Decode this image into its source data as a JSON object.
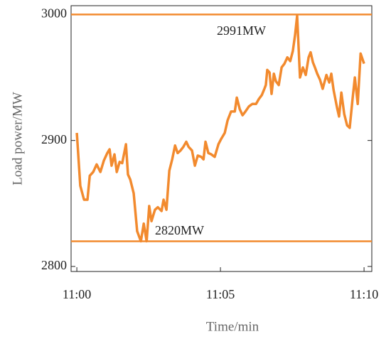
{
  "chart_data": {
    "type": "line",
    "x_label": "Time/min",
    "y_label": "Load power/MW",
    "annotations": [
      "2991MW",
      "2820MW"
    ],
    "hlines": [
      3000,
      2820
    ],
    "hline_color": "#f28a2e",
    "xlim": [
      -0.2,
      10.27
    ],
    "ylim": [
      2796,
      3007
    ],
    "xticks": [
      {
        "value": 0,
        "label": "11:00"
      },
      {
        "value": 5,
        "label": "11:05"
      },
      {
        "value": 10,
        "label": "11:10"
      }
    ],
    "yticks": [
      2800,
      2900,
      3000
    ],
    "x": [
      0,
      0.12,
      0.25,
      0.37,
      0.45,
      0.57,
      0.69,
      0.82,
      0.94,
      1.06,
      1.14,
      1.21,
      1.31,
      1.39,
      1.49,
      1.58,
      1.71,
      1.78,
      1.86,
      1.98,
      2.1,
      2.23,
      2.33,
      2.43,
      2.52,
      2.6,
      2.72,
      2.82,
      2.95,
      3.02,
      3.12,
      3.22,
      3.32,
      3.42,
      3.51,
      3.61,
      3.71,
      3.81,
      3.89,
      4.01,
      4.11,
      4.21,
      4.33,
      4.41,
      4.48,
      4.58,
      4.68,
      4.8,
      4.93,
      5.02,
      5.15,
      5.25,
      5.37,
      5.5,
      5.57,
      5.67,
      5.77,
      5.87,
      5.99,
      6.11,
      6.24,
      6.34,
      6.44,
      6.53,
      6.58,
      6.63,
      6.71,
      6.78,
      6.86,
      6.93,
      7.03,
      7.13,
      7.23,
      7.33,
      7.43,
      7.52,
      7.6,
      7.67,
      7.77,
      7.87,
      7.97,
      8.07,
      8.14,
      8.22,
      8.29,
      8.37,
      8.47,
      8.56,
      8.69,
      8.79,
      8.86,
      8.94,
      9.06,
      9.13,
      9.21,
      9.31,
      9.41,
      9.5,
      9.6,
      9.68,
      9.78,
      9.88,
      10
    ],
    "series": [
      {
        "color": "#f28a2e",
        "values": [
          2906,
          2864,
          2853,
          2853,
          2872,
          2875,
          2881,
          2875,
          2884,
          2890,
          2893,
          2880,
          2889,
          2875,
          2883,
          2882,
          2897,
          2873,
          2869,
          2858,
          2828,
          2820,
          2834,
          2820,
          2848,
          2836,
          2845,
          2847,
          2844,
          2853,
          2845,
          2876,
          2885,
          2896,
          2890,
          2892,
          2895,
          2899,
          2895,
          2892,
          2880,
          2888,
          2887,
          2885,
          2899,
          2890,
          2889,
          2887,
          2897,
          2901,
          2906,
          2916,
          2923,
          2923,
          2934,
          2925,
          2920,
          2923,
          2927,
          2929,
          2929,
          2933,
          2936,
          2941,
          2944,
          2956,
          2954,
          2937,
          2953,
          2947,
          2944,
          2958,
          2961,
          2966,
          2963,
          2971,
          2984,
          2999,
          2950,
          2958,
          2952,
          2966,
          2970,
          2962,
          2958,
          2953,
          2948,
          2941,
          2952,
          2946,
          2953,
          2940,
          2926,
          2919,
          2938,
          2921,
          2912,
          2910,
          2933,
          2950,
          2929,
          2969,
          2961
        ]
      }
    ]
  }
}
